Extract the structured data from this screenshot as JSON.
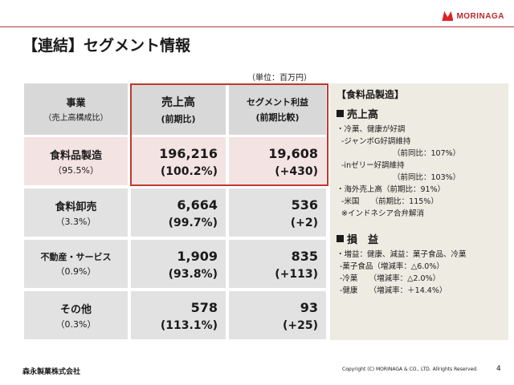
{
  "header": {
    "title": "【連結】セグメント情報",
    "logo_text": "MORINAGA",
    "brand_color": "#c0262d"
  },
  "unit_note": "（単位：百万円）",
  "table": {
    "header": {
      "label_main": "事業",
      "label_sub": "（売上高構成比）",
      "sales_main": "売上高",
      "sales_sub": "(前期比)",
      "profit_main": "セグメント利益",
      "profit_sub": "(前期比較)"
    },
    "rows": [
      {
        "name": "食料品製造",
        "share": "（95.5%）",
        "sales": "196,216",
        "sales_change": "(100.2%)",
        "profit": "19,608",
        "profit_change": "(+430)"
      },
      {
        "name": "食料卸売",
        "share": "（3.3%）",
        "sales": "6,664",
        "sales_change": "(99.7%)",
        "profit": "536",
        "profit_change": "(+2)"
      },
      {
        "name": "不動産・サービス",
        "share": "（0.9%）",
        "sales": "1,909",
        "sales_change": "(93.8%)",
        "profit": "835",
        "profit_change": "(+113)"
      },
      {
        "name": "その他",
        "share": "（0.3%）",
        "sales": "578",
        "sales_change": "(113.1%)",
        "profit": "93",
        "profit_change": "(+25)"
      }
    ]
  },
  "panel": {
    "title": "【食料品製造】",
    "sales_heading": "売上高",
    "sales_lines": [
      "・冷菓、健康が好調",
      "-ジャンボG好調維持",
      "（前同比：107%）",
      "-inゼリー好調維持",
      "（前同比：103%）",
      "・海外売上高（前期比：91%）",
      "-米国　　（前期比：115%）",
      "※インドネシア合弁解消"
    ],
    "profit_heading": "損　益",
    "profit_lines": [
      "・増益：健康、減益：菓子食品、冷菓",
      "-菓子食品（増減率：△6.0%）",
      "-冷菓　　（増減率：△2.0%）",
      "-健康　　（増減率：＋14.4%）"
    ]
  },
  "footer": {
    "company": "森永製菓株式会社",
    "copyright": "Copyright (C) MORINAGA & CO., LTD. Allrights Reserved.",
    "page": "4"
  }
}
